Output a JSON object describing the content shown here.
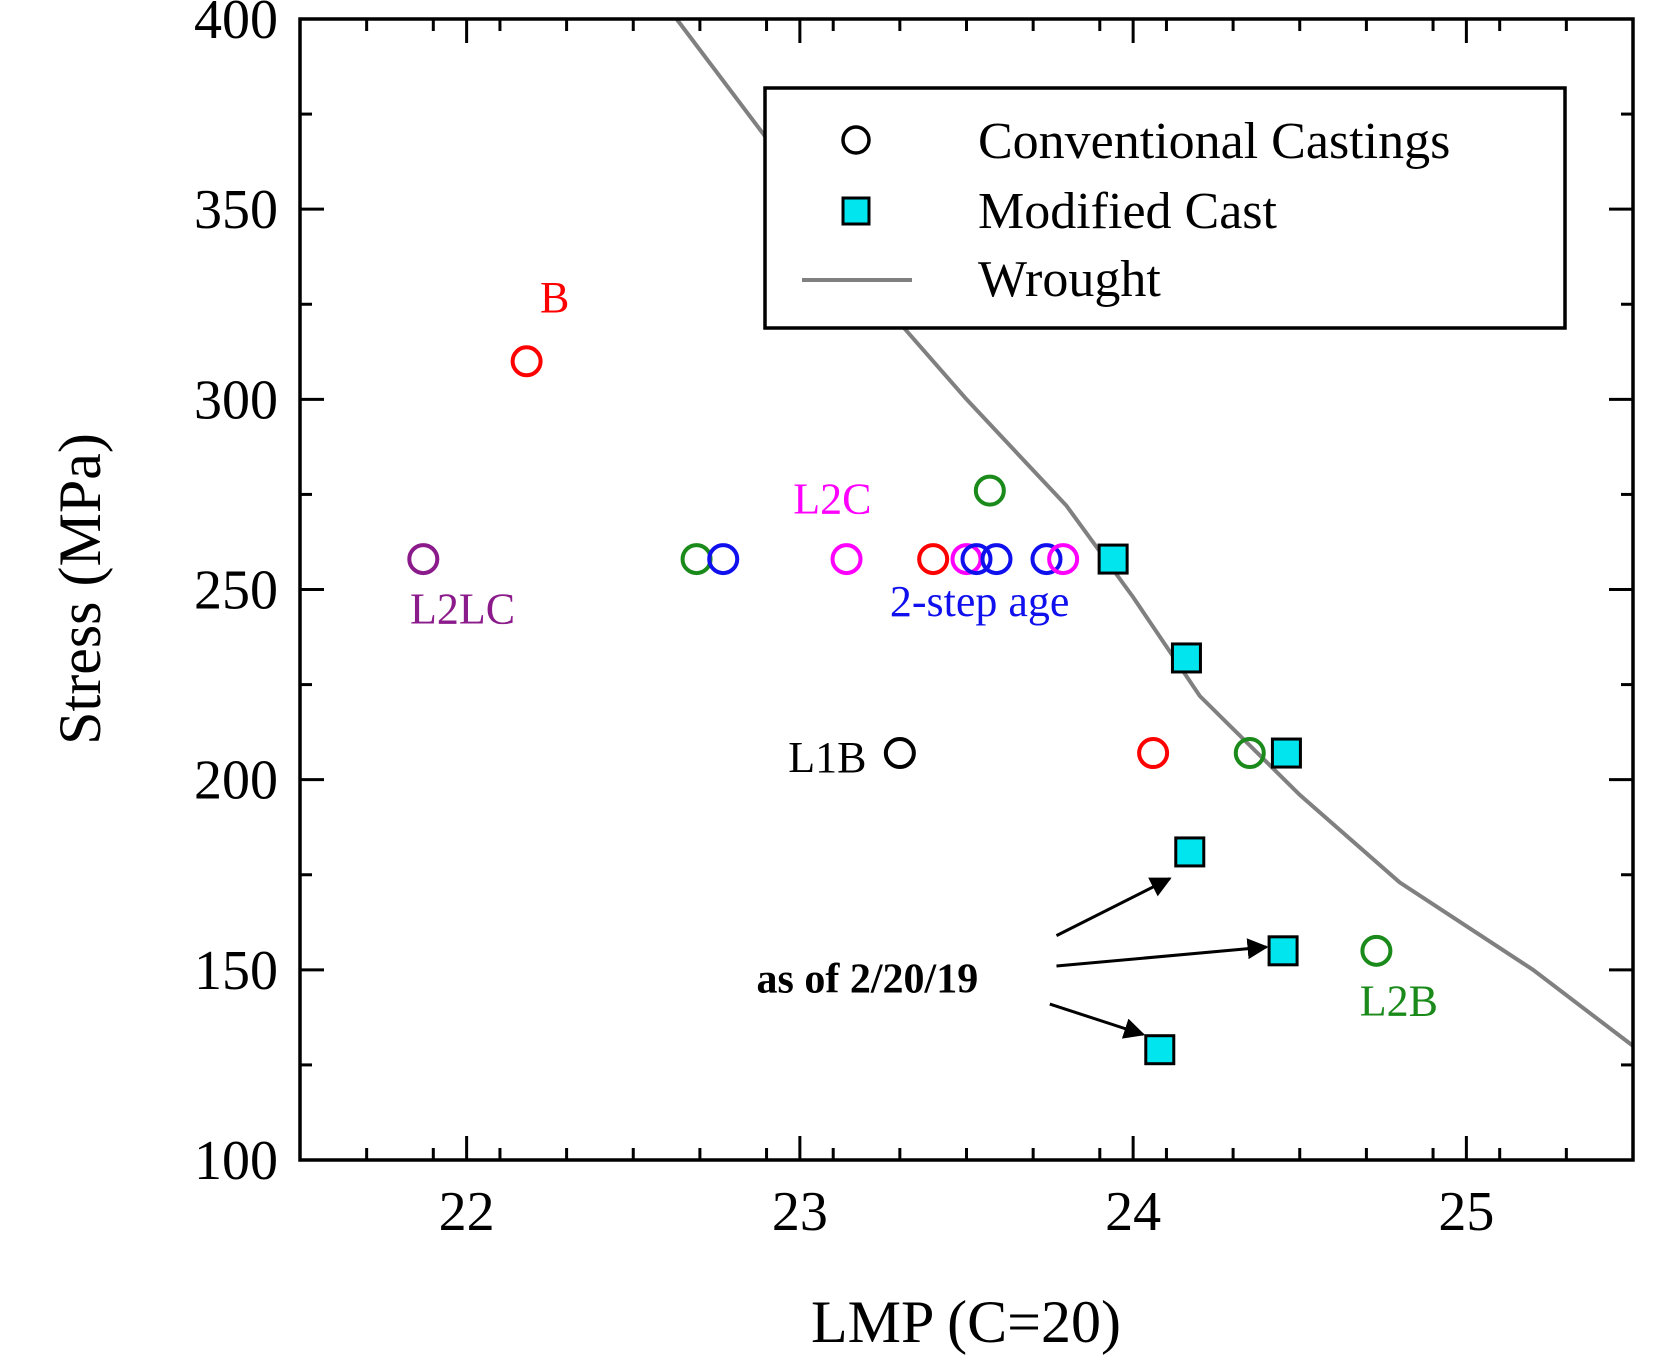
{
  "chart_data": {
    "type": "scatter",
    "xlabel": "LMP (C=20)",
    "ylabel": "Stress (MPa)",
    "xlim": [
      21.5,
      25.5
    ],
    "ylim": [
      100,
      400
    ],
    "xticks": [
      22,
      23,
      24,
      25
    ],
    "yticks": [
      100,
      150,
      200,
      250,
      300,
      350,
      400
    ],
    "grid": false,
    "legend": {
      "position": "top-right",
      "entries": [
        {
          "label": "Conventional Castings",
          "marker": "open-circle",
          "color": "#000000"
        },
        {
          "label": "Modified Cast",
          "marker": "filled-square",
          "color": "#00e5ee"
        },
        {
          "label": "Wrought",
          "marker": "line",
          "color": "#808080"
        }
      ]
    },
    "series": [
      {
        "marker": "open-circle",
        "points": [
          {
            "x": 22.18,
            "y": 310,
            "color": "#ff0000"
          },
          {
            "x": 21.87,
            "y": 258,
            "color": "#8b1a8b"
          },
          {
            "x": 22.69,
            "y": 258,
            "color": "#1a8a1a"
          },
          {
            "x": 22.77,
            "y": 258,
            "color": "#1010ee"
          },
          {
            "x": 23.14,
            "y": 258,
            "color": "#ff00ff"
          },
          {
            "x": 23.4,
            "y": 258,
            "color": "#ff0000"
          },
          {
            "x": 23.5,
            "y": 258,
            "color": "#ff00ff"
          },
          {
            "x": 23.53,
            "y": 258,
            "color": "#1010ee"
          },
          {
            "x": 23.59,
            "y": 258,
            "color": "#1010ee"
          },
          {
            "x": 23.74,
            "y": 258,
            "color": "#1010ee"
          },
          {
            "x": 23.79,
            "y": 258,
            "color": "#ff00ff"
          },
          {
            "x": 23.57,
            "y": 276,
            "color": "#1a8a1a"
          },
          {
            "x": 23.3,
            "y": 207,
            "color": "#000000"
          },
          {
            "x": 24.06,
            "y": 207,
            "color": "#ff0000"
          },
          {
            "x": 24.35,
            "y": 207,
            "color": "#1a8a1a"
          },
          {
            "x": 24.73,
            "y": 155,
            "color": "#1a8a1a"
          }
        ]
      },
      {
        "marker": "filled-square",
        "color": "#00e5ee",
        "points": [
          {
            "x": 23.94,
            "y": 258
          },
          {
            "x": 24.16,
            "y": 232
          },
          {
            "x": 24.46,
            "y": 207
          },
          {
            "x": 24.17,
            "y": 181
          },
          {
            "x": 24.45,
            "y": 155
          },
          {
            "x": 24.08,
            "y": 129
          }
        ]
      },
      {
        "marker": "line",
        "color": "#808080",
        "points": [
          {
            "x": 22.63,
            "y": 400
          },
          {
            "x": 23.0,
            "y": 357
          },
          {
            "x": 23.3,
            "y": 320
          },
          {
            "x": 23.5,
            "y": 300
          },
          {
            "x": 23.8,
            "y": 272
          },
          {
            "x": 24.0,
            "y": 248
          },
          {
            "x": 24.2,
            "y": 222
          },
          {
            "x": 24.5,
            "y": 196
          },
          {
            "x": 24.8,
            "y": 173
          },
          {
            "x": 25.2,
            "y": 150
          },
          {
            "x": 25.5,
            "y": 130
          }
        ]
      }
    ],
    "annotations": [
      {
        "text": "B",
        "x": 22.22,
        "y": 323,
        "color": "#ff0000",
        "anchor": "start",
        "bold": false
      },
      {
        "text": "L2LC",
        "x": 21.83,
        "y": 241,
        "color": "#8b1a8b",
        "anchor": "start",
        "bold": false
      },
      {
        "text": "L2C",
        "x": 22.98,
        "y": 270,
        "color": "#ff00ff",
        "anchor": "start",
        "bold": false
      },
      {
        "text": "2-step age",
        "x": 23.27,
        "y": 243,
        "color": "#1010ee",
        "anchor": "start",
        "bold": false
      },
      {
        "text": "L1B",
        "x": 23.2,
        "y": 202,
        "color": "#000000",
        "anchor": "end",
        "bold": false
      },
      {
        "text": "L2B",
        "x": 24.68,
        "y": 138,
        "color": "#1a8a1a",
        "anchor": "start",
        "bold": false
      },
      {
        "text": "as of 2/20/19",
        "x": 22.87,
        "y": 144,
        "color": "#000000",
        "anchor": "start",
        "bold": true
      }
    ],
    "arrows": [
      {
        "from": [
          23.77,
          159
        ],
        "to": [
          24.11,
          174
        ]
      },
      {
        "from": [
          23.77,
          151
        ],
        "to": [
          24.4,
          156
        ]
      },
      {
        "from": [
          23.75,
          141
        ],
        "to": [
          24.03,
          133
        ]
      }
    ]
  }
}
